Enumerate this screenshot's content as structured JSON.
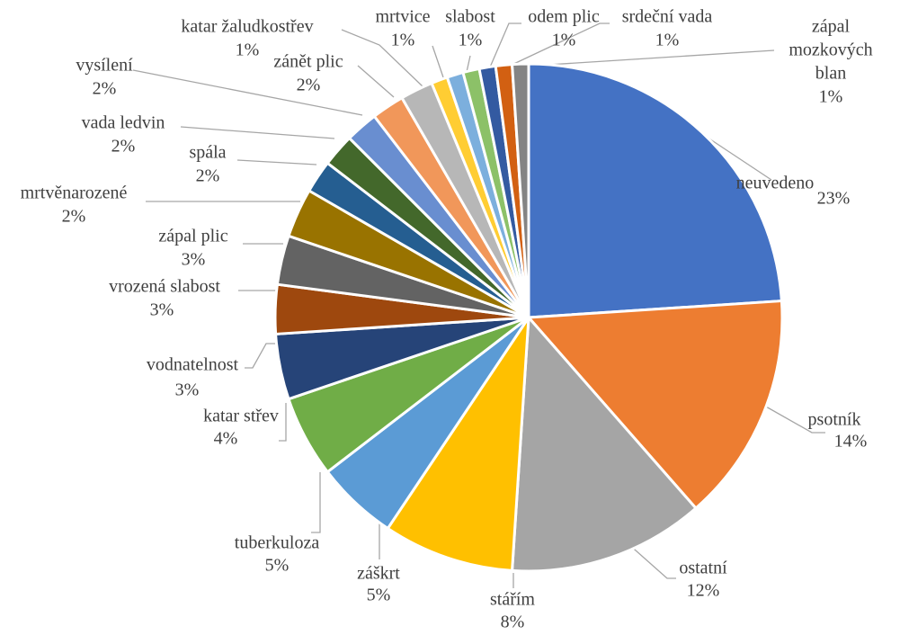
{
  "chart_data": {
    "type": "pie",
    "title": "",
    "start_angle_deg": 0,
    "direction": "clockwise",
    "legend": "none",
    "slices": [
      {
        "category": "neuvedeno",
        "value": 23,
        "label": "23%",
        "color": "#4472c4"
      },
      {
        "category": "psotník",
        "value": 14,
        "label": "14%",
        "color": "#ed7d31"
      },
      {
        "category": "ostatní",
        "value": 12,
        "label": "12%",
        "color": "#a5a5a5"
      },
      {
        "category": "stářím",
        "value": 8,
        "label": "8%",
        "color": "#ffc000"
      },
      {
        "category": "záškrt",
        "value": 5,
        "label": "5%",
        "color": "#5b9bd5"
      },
      {
        "category": "tuberkuloza",
        "value": 5,
        "label": "5%",
        "color": "#70ad47"
      },
      {
        "category": "katar střev",
        "value": 4,
        "label": "4%",
        "color": "#264478"
      },
      {
        "category": "vodnatelnost",
        "value": 3,
        "label": "3%",
        "color": "#9e480e"
      },
      {
        "category": "vrozená slabost",
        "value": 3,
        "label": "3%",
        "color": "#636363"
      },
      {
        "category": "zápal plic",
        "value": 3,
        "label": "3%",
        "color": "#997300"
      },
      {
        "category": "mrtvěnarozené",
        "value": 2,
        "label": "2%",
        "color": "#255e91"
      },
      {
        "category": "spála",
        "value": 2,
        "label": "2%",
        "color": "#43682b"
      },
      {
        "category": "vada ledvin",
        "value": 2,
        "label": "2%",
        "color": "#698ed0"
      },
      {
        "category": "vysílení",
        "value": 2,
        "label": "2%",
        "color": "#f1975a"
      },
      {
        "category": "zánět plic",
        "value": 2,
        "label": "2%",
        "color": "#b7b7b7"
      },
      {
        "category": "katar žaludkostřev",
        "value": 1,
        "label": "1%",
        "color": "#ffcd33"
      },
      {
        "category": "mrtvice",
        "value": 1,
        "label": "1%",
        "color": "#7cafdd"
      },
      {
        "category": "slabost",
        "value": 1,
        "label": "1%",
        "color": "#8cc168"
      },
      {
        "category": "odem plic",
        "value": 1,
        "label": "1%",
        "color": "#335aa1"
      },
      {
        "category": "srdeční vada",
        "value": 1,
        "label": "1%",
        "color": "#d26012"
      },
      {
        "category": "zápal mozkových blan",
        "value": 1,
        "label": "1%",
        "color": "#848484"
      }
    ]
  }
}
